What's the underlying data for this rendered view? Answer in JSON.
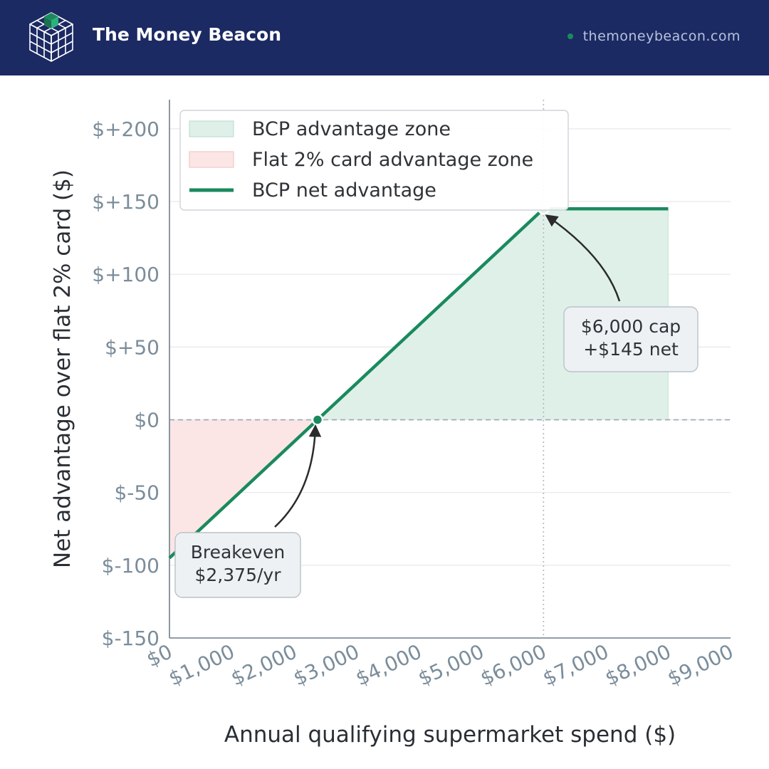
{
  "header": {
    "brand": "The Money Beacon",
    "site": "themoneybeacon.com",
    "logo_icon": "cube-grid-icon",
    "colors": {
      "background": "#1b2a63",
      "accent": "#1a8a5e"
    }
  },
  "chart_data": {
    "type": "line",
    "title": "",
    "xlabel": "Annual qualifying supermarket spend ($)",
    "ylabel": "Net advantage over flat 2% card ($)",
    "xlim": [
      0,
      9000
    ],
    "ylim": [
      -150,
      220
    ],
    "x_ticks": [
      0,
      1000,
      2000,
      3000,
      4000,
      5000,
      6000,
      7000,
      8000,
      9000
    ],
    "x_tick_labels": [
      "$0",
      "$1,000",
      "$2,000",
      "$3,000",
      "$4,000",
      "$5,000",
      "$6,000",
      "$7,000",
      "$8,000",
      "$9,000"
    ],
    "y_ticks": [
      -150,
      -100,
      -50,
      0,
      50,
      100,
      150,
      200
    ],
    "y_tick_labels": [
      "$-150",
      "$-100",
      "$-50",
      "$0",
      "$+50",
      "$+100",
      "$+150",
      "$+200"
    ],
    "grid": true,
    "legend_position": "top-left",
    "series": [
      {
        "name": "BCP net advantage",
        "color": "#1a8a5e",
        "x": [
          0,
          2375,
          6000,
          8000
        ],
        "y": [
          -95,
          0,
          145,
          145
        ]
      }
    ],
    "zones": [
      {
        "name": "BCP advantage zone",
        "color": "#dff0e9",
        "x_range": [
          2375,
          8000
        ]
      },
      {
        "name": "Flat 2% card advantage zone",
        "color": "#fbe6e5",
        "x_range": [
          0,
          2375
        ]
      }
    ],
    "reference_lines": {
      "zero_line_y": 0,
      "cap_line_x": 6000
    },
    "points": [
      {
        "x": 2375,
        "y": 0,
        "label": "breakeven"
      },
      {
        "x": 6000,
        "y": 145,
        "label": "cap"
      }
    ],
    "annotations": [
      {
        "lines": [
          "Breakeven",
          "$2,375/yr"
        ],
        "target_x": 2375,
        "target_y": 0
      },
      {
        "lines": [
          "$6,000 cap",
          "+$145 net"
        ],
        "target_x": 6000,
        "target_y": 145
      }
    ]
  }
}
